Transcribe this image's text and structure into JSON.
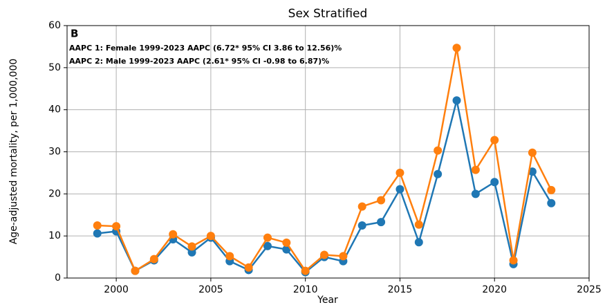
{
  "chart_data": {
    "type": "line",
    "title": "Sex Stratified",
    "xlabel": "Year",
    "ylabel": "Age-adjusted mortality, per 1,000,000",
    "annotations": [
      {
        "text": "B",
        "color": "#000000"
      },
      {
        "text": "AAPC 1: Female 1999-2023 AAPC (6.72* 95% CI 3.86 to 12.56)%",
        "color": "#1f77b4"
      },
      {
        "text": "AAPC 2: Male 1999-2023 AAPC (2.61* 95% CI -0.98 to 6.87)%",
        "color": "#ff7f0e"
      }
    ],
    "x": [
      1999,
      2000,
      2001,
      2002,
      2003,
      2004,
      2005,
      2006,
      2007,
      2008,
      2009,
      2010,
      2011,
      2012,
      2013,
      2014,
      2015,
      2016,
      2017,
      2018,
      2019,
      2020,
      2021,
      2022,
      2023
    ],
    "series": [
      {
        "name": "Female",
        "color": "#1f77b4",
        "values": [
          10.6,
          11.1,
          1.7,
          4.2,
          9.2,
          6.1,
          9.6,
          4.0,
          1.9,
          7.6,
          6.8,
          1.4,
          5.0,
          4.0,
          12.5,
          13.3,
          21.1,
          8.5,
          24.7,
          42.2,
          20.0,
          22.8,
          3.3,
          25.3,
          17.8
        ]
      },
      {
        "name": "Male",
        "color": "#ff7f0e",
        "values": [
          12.5,
          12.3,
          1.7,
          4.5,
          10.4,
          7.5,
          10.0,
          5.2,
          2.5,
          9.6,
          8.4,
          1.7,
          5.5,
          5.2,
          17.0,
          18.5,
          25.0,
          12.7,
          30.3,
          54.7,
          25.7,
          32.8,
          4.2,
          29.8,
          20.9
        ]
      }
    ],
    "xlim": [
      1997.4,
      2025
    ],
    "xticks": [
      2000,
      2005,
      2010,
      2015,
      2020,
      2025
    ],
    "ylim": [
      0,
      60
    ],
    "yticks": [
      0,
      10,
      20,
      30,
      40,
      50,
      60
    ],
    "grid": true
  }
}
